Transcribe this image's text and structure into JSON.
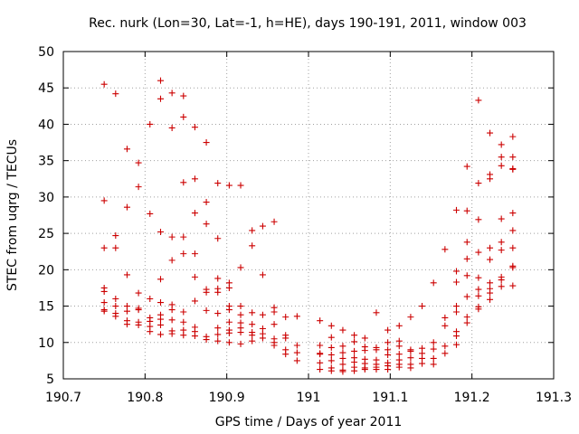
{
  "chart_data": {
    "type": "scatter",
    "title": "Rec. nurk (Lon=30, Lat=-1, h=HE), days 190-191, 2011, window 003",
    "xlabel": "GPS time / Days of year 2011",
    "ylabel": "STEC from uqrg / TECUs",
    "xlim": [
      190.7,
      191.3
    ],
    "ylim": [
      5,
      50
    ],
    "xticks": [
      190.7,
      190.8,
      190.9,
      191,
      191.1,
      191.2,
      191.3
    ],
    "xtick_labels": [
      "190.7",
      "190.8",
      "190.9",
      "191",
      "191.1",
      "191.2",
      "191.3"
    ],
    "yticks": [
      5,
      10,
      15,
      20,
      25,
      30,
      35,
      40,
      45,
      50
    ],
    "ytick_labels": [
      "5",
      "10",
      "15",
      "20",
      "25",
      "30",
      "35",
      "40",
      "45",
      "50"
    ],
    "grid": true,
    "marker": "+",
    "color": "#cc0000",
    "series": [
      {
        "name": "STEC",
        "points": [
          [
            190.75,
            45.5
          ],
          [
            190.75,
            29.5
          ],
          [
            190.75,
            23.0
          ],
          [
            190.75,
            17.5
          ],
          [
            190.75,
            17.0
          ],
          [
            190.75,
            15.5
          ],
          [
            190.75,
            14.5
          ],
          [
            190.75,
            14.3
          ],
          [
            190.764,
            44.2
          ],
          [
            190.764,
            24.7
          ],
          [
            190.764,
            23.0
          ],
          [
            190.764,
            16.0
          ],
          [
            190.764,
            15.0
          ],
          [
            190.764,
            14.0
          ],
          [
            190.764,
            13.6
          ],
          [
            190.778,
            36.6
          ],
          [
            190.778,
            28.6
          ],
          [
            190.778,
            19.3
          ],
          [
            190.778,
            15.0
          ],
          [
            190.778,
            14.3
          ],
          [
            190.778,
            13.0
          ],
          [
            190.778,
            12.5
          ],
          [
            190.792,
            34.7
          ],
          [
            190.792,
            31.4
          ],
          [
            190.792,
            16.8
          ],
          [
            190.792,
            14.7
          ],
          [
            190.792,
            14.5
          ],
          [
            190.792,
            12.8
          ],
          [
            190.792,
            12.4
          ],
          [
            190.806,
            40.0
          ],
          [
            190.806,
            27.7
          ],
          [
            190.806,
            16.0
          ],
          [
            190.806,
            13.4
          ],
          [
            190.806,
            12.9
          ],
          [
            190.806,
            12.2
          ],
          [
            190.806,
            11.5
          ],
          [
            190.819,
            46.0
          ],
          [
            190.819,
            43.5
          ],
          [
            190.819,
            25.2
          ],
          [
            190.819,
            18.7
          ],
          [
            190.819,
            15.5
          ],
          [
            190.819,
            13.8
          ],
          [
            190.819,
            13.2
          ],
          [
            190.819,
            12.4
          ],
          [
            190.819,
            11.1
          ],
          [
            190.833,
            44.3
          ],
          [
            190.833,
            39.5
          ],
          [
            190.833,
            24.5
          ],
          [
            190.833,
            21.3
          ],
          [
            190.833,
            15.2
          ],
          [
            190.833,
            14.5
          ],
          [
            190.833,
            13.1
          ],
          [
            190.833,
            11.6
          ],
          [
            190.833,
            11.2
          ],
          [
            190.847,
            43.9
          ],
          [
            190.847,
            41.0
          ],
          [
            190.847,
            32.0
          ],
          [
            190.847,
            24.5
          ],
          [
            190.847,
            22.2
          ],
          [
            190.847,
            14.2
          ],
          [
            190.847,
            12.8
          ],
          [
            190.847,
            11.7
          ],
          [
            190.847,
            11.0
          ],
          [
            190.861,
            39.6
          ],
          [
            190.861,
            32.5
          ],
          [
            190.861,
            27.8
          ],
          [
            190.861,
            22.2
          ],
          [
            190.861,
            19.0
          ],
          [
            190.861,
            15.7
          ],
          [
            190.861,
            12.1
          ],
          [
            190.861,
            11.5
          ],
          [
            190.861,
            10.9
          ],
          [
            190.875,
            37.5
          ],
          [
            190.875,
            29.3
          ],
          [
            190.875,
            26.3
          ],
          [
            190.875,
            17.3
          ],
          [
            190.875,
            16.9
          ],
          [
            190.875,
            14.4
          ],
          [
            190.875,
            10.8
          ],
          [
            190.875,
            10.4
          ],
          [
            190.889,
            31.9
          ],
          [
            190.889,
            24.3
          ],
          [
            190.889,
            18.8
          ],
          [
            190.889,
            17.4
          ],
          [
            190.889,
            16.9
          ],
          [
            190.889,
            14.0
          ],
          [
            190.889,
            12.0
          ],
          [
            190.889,
            11.1
          ],
          [
            190.889,
            10.2
          ],
          [
            190.903,
            31.6
          ],
          [
            190.903,
            18.2
          ],
          [
            190.903,
            17.5
          ],
          [
            190.903,
            15.0
          ],
          [
            190.903,
            14.5
          ],
          [
            190.903,
            12.8
          ],
          [
            190.903,
            11.7
          ],
          [
            190.903,
            11.3
          ],
          [
            190.903,
            10.0
          ],
          [
            190.917,
            31.6
          ],
          [
            190.917,
            20.3
          ],
          [
            190.917,
            15.0
          ],
          [
            190.917,
            13.8
          ],
          [
            190.917,
            12.7
          ],
          [
            190.917,
            12.0
          ],
          [
            190.917,
            11.4
          ],
          [
            190.917,
            9.8
          ],
          [
            190.931,
            25.4
          ],
          [
            190.931,
            23.3
          ],
          [
            190.931,
            14.1
          ],
          [
            190.931,
            12.5
          ],
          [
            190.931,
            11.4
          ],
          [
            190.931,
            11.0
          ],
          [
            190.931,
            10.2
          ],
          [
            190.944,
            26.0
          ],
          [
            190.944,
            19.3
          ],
          [
            190.944,
            13.8
          ],
          [
            190.944,
            11.9
          ],
          [
            190.944,
            11.2
          ],
          [
            190.944,
            10.6
          ],
          [
            190.958,
            26.6
          ],
          [
            190.958,
            14.8
          ],
          [
            190.958,
            14.2
          ],
          [
            190.958,
            12.5
          ],
          [
            190.958,
            10.5
          ],
          [
            190.958,
            10.0
          ],
          [
            190.958,
            9.6
          ],
          [
            190.972,
            13.5
          ],
          [
            190.972,
            11.0
          ],
          [
            190.972,
            10.6
          ],
          [
            190.972,
            9.0
          ],
          [
            190.972,
            8.4
          ],
          [
            190.986,
            13.6
          ],
          [
            190.986,
            9.6
          ],
          [
            190.986,
            8.6
          ],
          [
            190.986,
            7.5
          ],
          [
            191.014,
            13.0
          ],
          [
            191.014,
            9.6
          ],
          [
            191.014,
            8.5
          ],
          [
            191.014,
            8.4
          ],
          [
            191.014,
            7.2
          ],
          [
            191.014,
            6.3
          ],
          [
            191.028,
            12.3
          ],
          [
            191.028,
            10.7
          ],
          [
            191.028,
            9.3
          ],
          [
            191.028,
            8.3
          ],
          [
            191.028,
            7.5
          ],
          [
            191.028,
            6.5
          ],
          [
            191.028,
            6.1
          ],
          [
            191.042,
            11.7
          ],
          [
            191.042,
            9.5
          ],
          [
            191.042,
            8.6
          ],
          [
            191.042,
            7.8
          ],
          [
            191.042,
            7.0
          ],
          [
            191.042,
            6.2
          ],
          [
            191.042,
            6.0
          ],
          [
            191.056,
            11.0
          ],
          [
            191.056,
            10.1
          ],
          [
            191.056,
            8.8
          ],
          [
            191.056,
            7.9
          ],
          [
            191.056,
            7.3
          ],
          [
            191.056,
            6.6
          ],
          [
            191.056,
            6.1
          ],
          [
            191.069,
            10.6
          ],
          [
            191.069,
            9.4
          ],
          [
            191.069,
            8.9
          ],
          [
            191.069,
            7.7
          ],
          [
            191.069,
            7.1
          ],
          [
            191.069,
            6.5
          ],
          [
            191.069,
            6.3
          ],
          [
            191.083,
            14.1
          ],
          [
            191.083,
            9.3
          ],
          [
            191.083,
            9.0
          ],
          [
            191.083,
            7.6
          ],
          [
            191.083,
            7.0
          ],
          [
            191.083,
            6.6
          ],
          [
            191.083,
            6.3
          ],
          [
            191.097,
            11.7
          ],
          [
            191.097,
            10.0
          ],
          [
            191.097,
            9.0
          ],
          [
            191.097,
            8.3
          ],
          [
            191.097,
            7.2
          ],
          [
            191.097,
            6.8
          ],
          [
            191.097,
            6.3
          ],
          [
            191.111,
            12.3
          ],
          [
            191.111,
            10.2
          ],
          [
            191.111,
            9.5
          ],
          [
            191.111,
            8.4
          ],
          [
            191.111,
            7.6
          ],
          [
            191.111,
            7.0
          ],
          [
            191.111,
            6.6
          ],
          [
            191.125,
            13.5
          ],
          [
            191.125,
            9.0
          ],
          [
            191.125,
            8.8
          ],
          [
            191.125,
            7.9
          ],
          [
            191.125,
            7.0
          ],
          [
            191.125,
            6.5
          ],
          [
            191.139,
            15.0
          ],
          [
            191.139,
            9.2
          ],
          [
            191.139,
            8.5
          ],
          [
            191.139,
            7.8
          ],
          [
            191.139,
            7.1
          ],
          [
            191.153,
            18.2
          ],
          [
            191.153,
            10.0
          ],
          [
            191.153,
            9.1
          ],
          [
            191.153,
            7.8
          ],
          [
            191.153,
            7.0
          ],
          [
            191.167,
            22.8
          ],
          [
            191.167,
            13.4
          ],
          [
            191.167,
            12.3
          ],
          [
            191.167,
            9.5
          ],
          [
            191.167,
            8.5
          ],
          [
            191.181,
            28.2
          ],
          [
            191.181,
            19.8
          ],
          [
            191.181,
            18.3
          ],
          [
            191.181,
            15.0
          ],
          [
            191.181,
            14.2
          ],
          [
            191.181,
            11.5
          ],
          [
            191.181,
            10.9
          ],
          [
            191.181,
            9.7
          ],
          [
            191.194,
            34.2
          ],
          [
            191.194,
            28.1
          ],
          [
            191.194,
            23.8
          ],
          [
            191.194,
            21.5
          ],
          [
            191.194,
            19.2
          ],
          [
            191.194,
            16.3
          ],
          [
            191.194,
            13.5
          ],
          [
            191.194,
            12.7
          ],
          [
            191.208,
            43.3
          ],
          [
            191.208,
            31.9
          ],
          [
            191.208,
            26.9
          ],
          [
            191.208,
            22.4
          ],
          [
            191.208,
            18.9
          ],
          [
            191.208,
            17.3
          ],
          [
            191.208,
            16.4
          ],
          [
            191.208,
            14.9
          ],
          [
            191.208,
            14.6
          ],
          [
            191.222,
            38.8
          ],
          [
            191.222,
            33.1
          ],
          [
            191.222,
            32.5
          ],
          [
            191.222,
            23.0
          ],
          [
            191.222,
            21.4
          ],
          [
            191.222,
            18.2
          ],
          [
            191.222,
            17.4
          ],
          [
            191.222,
            16.8
          ],
          [
            191.222,
            15.9
          ],
          [
            191.236,
            37.2
          ],
          [
            191.236,
            35.5
          ],
          [
            191.236,
            34.3
          ],
          [
            191.236,
            27.0
          ],
          [
            191.236,
            23.8
          ],
          [
            191.236,
            22.7
          ],
          [
            191.236,
            19.0
          ],
          [
            191.236,
            18.6
          ],
          [
            191.236,
            17.7
          ],
          [
            191.25,
            38.3
          ],
          [
            191.25,
            35.5
          ],
          [
            191.25,
            33.9
          ],
          [
            191.25,
            33.8
          ],
          [
            191.25,
            27.8
          ],
          [
            191.25,
            25.4
          ],
          [
            191.25,
            23.0
          ],
          [
            191.25,
            20.5
          ],
          [
            191.25,
            20.3
          ],
          [
            191.25,
            17.8
          ]
        ]
      }
    ]
  }
}
